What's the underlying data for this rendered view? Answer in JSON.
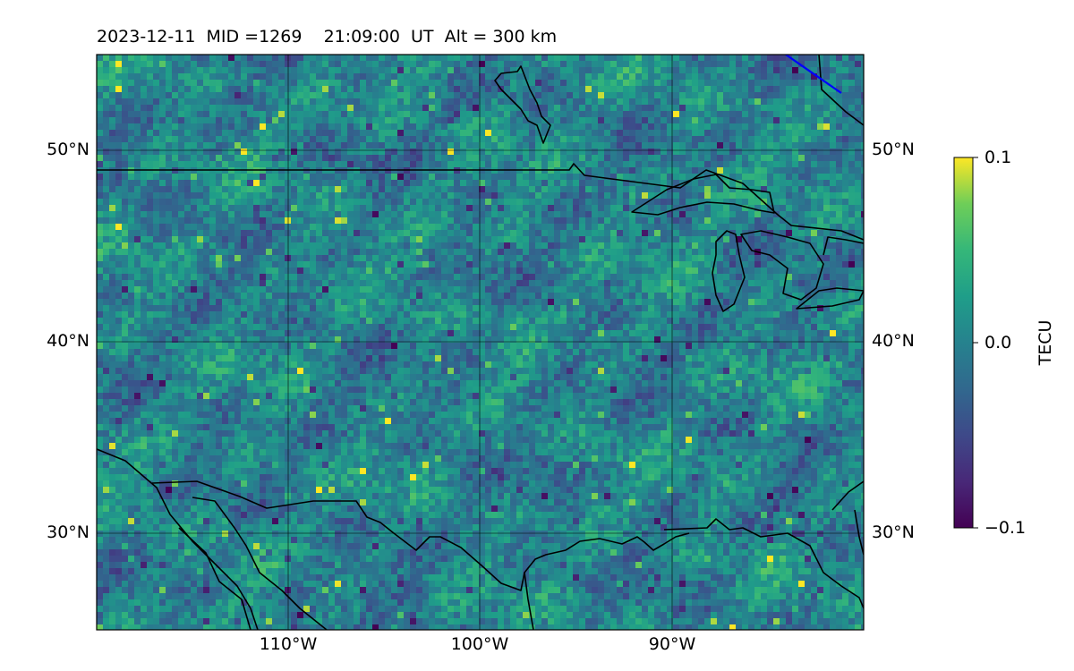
{
  "header": {
    "title": "2023-12-11  MID =1269    21:09:00  UT  Alt = 300 km"
  },
  "map": {
    "extent": {
      "lon": [
        -120,
        -80
      ],
      "lat": [
        25,
        55
      ]
    },
    "lat_ticks": [
      {
        "label": "50°N",
        "value": 50
      },
      {
        "label": "40°N",
        "value": 40
      },
      {
        "label": "30°N",
        "value": 30
      }
    ],
    "lon_ticks": [
      {
        "label": "110°W",
        "value": -110
      },
      {
        "label": "100°W",
        "value": -100
      },
      {
        "label": "90°W",
        "value": -90
      }
    ],
    "gridlines": true,
    "field": "TEC perturbation (viridis)",
    "terminator_color": "#0000ff"
  },
  "colorbar": {
    "label": "TECU",
    "colormap": "viridis",
    "range": [
      -0.1,
      0.1
    ],
    "ticks": [
      {
        "label": "0.1",
        "value": 0.1
      },
      {
        "label": "0.0",
        "value": 0.0
      },
      {
        "label": "−0.1",
        "value": -0.1
      }
    ]
  }
}
